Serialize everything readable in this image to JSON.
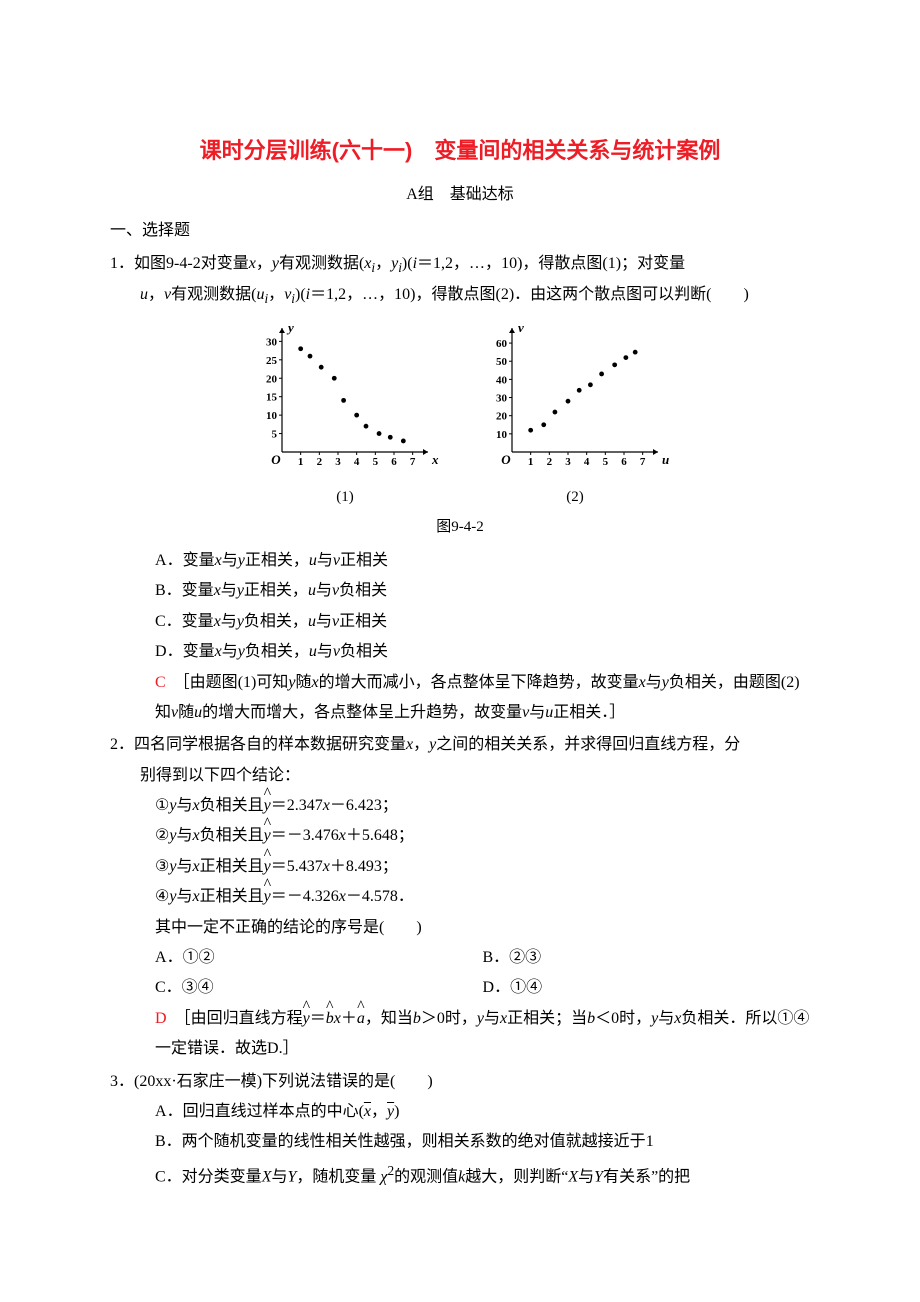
{
  "title": "课时分层训练(六十一)　变量间的相关关系与统计案例",
  "group_label": "A组　基础达标",
  "section1": "一、选择题",
  "q1": {
    "num": "1．",
    "stem_line1": "如图9-4-2对变量x，y有观测数据(xᵢ，yᵢ)(i＝1,2，…，10)，得散点图(1)；对变量",
    "stem_line2": "u，v有观测数据(uᵢ，vᵢ)(i＝1,2，…，10)，得散点图(2)．由这两个散点图可以判断(　　)",
    "fig_caption": "图9-4-2",
    "sub1": "(1)",
    "sub2": "(2)",
    "optA": "A．变量x与y正相关，u与v正相关",
    "optB": "B．变量x与y正相关，u与v负相关",
    "optC": "C．变量x与y负相关，u与v正相关",
    "optD": "D．变量x与y负相关，u与v负相关",
    "answer": "C",
    "explanation": "［由题图(1)可知y随x的增大而减小，各点整体呈下降趋势，故变量x与y负相关，由题图(2)知v随u的增大而增大，各点整体呈上升趋势，故变量v与u正相关．］"
  },
  "chart1": {
    "type": "scatter",
    "x_ticks": [
      1,
      2,
      3,
      4,
      5,
      6,
      7
    ],
    "y_ticks": [
      5,
      10,
      15,
      20,
      25,
      30
    ],
    "x_label": "x",
    "y_label": "y",
    "points": [
      [
        1,
        28
      ],
      [
        1.5,
        26
      ],
      [
        2.1,
        23
      ],
      [
        2.8,
        20
      ],
      [
        3.3,
        14
      ],
      [
        4,
        10
      ],
      [
        4.5,
        7
      ],
      [
        5.2,
        5
      ],
      [
        5.8,
        4
      ],
      [
        6.5,
        3
      ]
    ],
    "axis_color": "#000000",
    "point_color": "#000000",
    "background": "#ffffff",
    "xlim": [
      0,
      7.5
    ],
    "ylim": [
      0,
      32
    ],
    "tick_fontsize": 11,
    "label_fontsize": 13,
    "point_radius": 2.4
  },
  "chart2": {
    "type": "scatter",
    "x_ticks": [
      1,
      2,
      3,
      4,
      5,
      6,
      7
    ],
    "y_ticks": [
      10,
      20,
      30,
      40,
      50,
      60
    ],
    "x_label": "u",
    "y_label": "v",
    "points": [
      [
        1,
        12
      ],
      [
        1.7,
        15
      ],
      [
        2.3,
        22
      ],
      [
        3,
        28
      ],
      [
        3.6,
        34
      ],
      [
        4.2,
        37
      ],
      [
        4.8,
        43
      ],
      [
        5.5,
        48
      ],
      [
        6.1,
        52
      ],
      [
        6.6,
        55
      ]
    ],
    "axis_color": "#000000",
    "point_color": "#000000",
    "background": "#ffffff",
    "xlim": [
      0,
      7.5
    ],
    "ylim": [
      0,
      65
    ],
    "tick_fontsize": 11,
    "label_fontsize": 13,
    "point_radius": 2.4
  },
  "q2": {
    "num": "2．",
    "stem_line1": "四名同学根据各自的样本数据研究变量x，y之间的相关关系，并求得回归直线方程，分",
    "stem_line2": "别得到以下四个结论：",
    "c1": "①y与x负相关且",
    "c1eq": "＝2.347x－6.423；",
    "c2": "②y与x负相关且",
    "c2eq": "＝－3.476x＋5.648；",
    "c3": "③y与x正相关且",
    "c3eq": "＝5.437x＋8.493；",
    "c4": "④y与x正相关且",
    "c4eq": "＝－4.326x－4.578．",
    "ask": "其中一定不正确的结论的序号是(　　)",
    "optA": "A．①②",
    "optB": "B．②③",
    "optC": "C．③④",
    "optD": "D．①④",
    "answer": "D",
    "explanation_a": "［由回归直线方程",
    "explanation_b": "，知当b＞0时，y与x正相关；当b＜0时，y与x负相关．所以①④一定错误．故选D.］"
  },
  "q3": {
    "num": "3．",
    "stem": "(20xx·石家庄一模)下列说法错误的是(　　)",
    "optA_pre": "A．回归直线过样本点的中心(",
    "optA_mid": "，",
    "optA_post": ")",
    "optB": "B．两个随机变量的线性相关性越强，则相关系数的绝对值就越接近于1",
    "optC": "C．对分类变量X与Y，随机变量 χ²的观测值k越大，则判断“X与Y有关系”的把"
  }
}
